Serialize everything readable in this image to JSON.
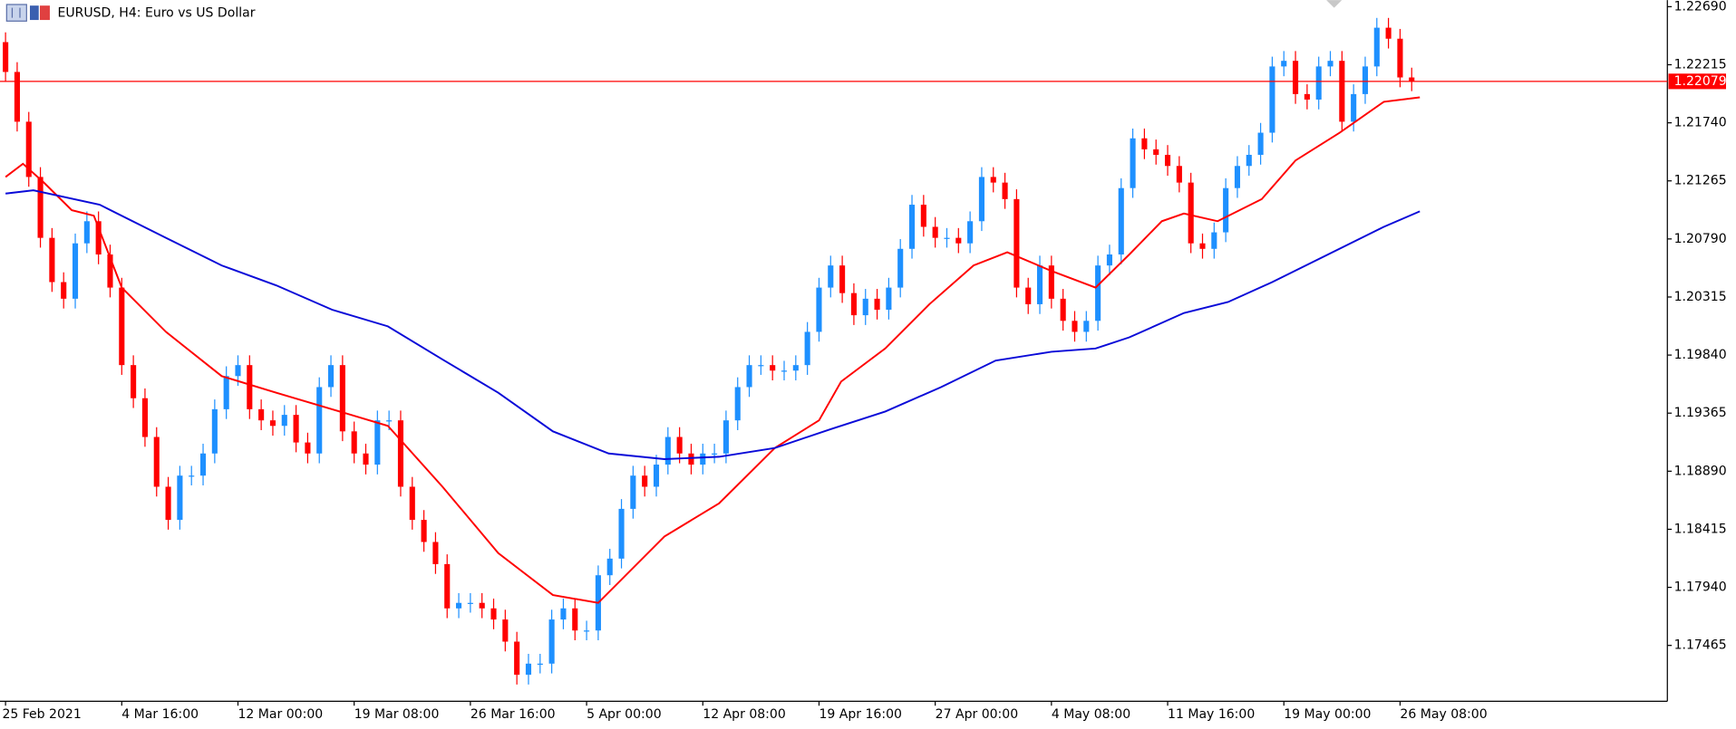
{
  "chart_data": {
    "type": "candlestick",
    "title": "EURUSD, H4:  Euro vs US Dollar",
    "xlim": [
      0,
      143
    ],
    "xticks": [
      {
        "value": 0,
        "label": "25 Feb 2021"
      },
      {
        "value": 10,
        "label": "4 Mar 16:00"
      },
      {
        "value": 20,
        "label": "12 Mar 00:00"
      },
      {
        "value": 30,
        "label": "19 Mar 08:00"
      },
      {
        "value": 40,
        "label": "26 Mar 16:00"
      },
      {
        "value": 50,
        "label": "5 Apr 00:00"
      },
      {
        "value": 60,
        "label": "12 Apr 08:00"
      },
      {
        "value": 70,
        "label": "19 Apr 16:00"
      },
      {
        "value": 80,
        "label": "27 Apr 00:00"
      },
      {
        "value": 90,
        "label": "4 May 08:00"
      },
      {
        "value": 100,
        "label": "11 May 16:00"
      },
      {
        "value": 110,
        "label": "19 May 00:00"
      },
      {
        "value": 120,
        "label": "26 May 08:00"
      }
    ],
    "ylim": [
      1.17008,
      1.22744
    ],
    "yticks": [
      {
        "value": 1.2269,
        "label": "1.22690"
      },
      1.22215,
      {
        "value": 1.2174,
        "label": "1.21740"
      },
      1.21265,
      {
        "value": 1.2079,
        "label": "1.20790"
      },
      1.20315,
      {
        "value": 1.1984,
        "label": "1.19840"
      },
      1.19365,
      {
        "value": 1.1889,
        "label": "1.18890"
      },
      1.18415,
      {
        "value": 1.1794,
        "label": "1.17940"
      },
      1.17465
    ],
    "up_color": "#1e90ff",
    "down_color": "#ff0000",
    "open": [
      1.224,
      1.22156,
      1.21749,
      1.21297,
      1.20799,
      1.20437,
      1.20301,
      1.20754,
      1.20935,
      1.20663,
      1.20392,
      1.19758,
      1.19487,
      1.1917,
      1.18763,
      1.18492,
      1.18854,
      1.18854,
      1.19035,
      1.19397,
      1.19668,
      1.19758,
      1.19397,
      1.19306,
      1.19261,
      1.19351,
      1.19125,
      1.19035,
      1.19578,
      1.19758,
      1.19216,
      1.19035,
      1.18944,
      1.19306,
      1.19306,
      1.18763,
      1.18492,
      1.18311,
      1.1813,
      1.17768,
      1.17813,
      1.17813,
      1.17768,
      1.17677,
      1.17496,
      1.17225,
      1.17316,
      1.17316,
      1.17677,
      1.17768,
      1.17587,
      1.17587,
      1.18039,
      1.18175,
      1.18582,
      1.18854,
      1.18763,
      1.18944,
      1.1917,
      1.19035,
      1.18944,
      1.19035,
      1.19035,
      1.19306,
      1.19578,
      1.19758,
      1.19758,
      1.19713,
      1.19713,
      1.19758,
      1.2003,
      1.20392,
      1.20573,
      1.20347,
      1.20166,
      1.20301,
      1.20211,
      1.20392,
      1.20709,
      1.2107,
      1.20889,
      1.20799,
      1.20799,
      1.20754,
      1.20935,
      1.21297,
      1.21251,
      1.21116,
      1.20392,
      1.20256,
      1.20573,
      1.20301,
      1.2012,
      1.2003,
      1.2012,
      1.20573,
      1.20663,
      1.21206,
      1.21613,
      1.21523,
      1.21478,
      1.21387,
      1.21251,
      1.20754,
      1.20709,
      1.20844,
      1.21206,
      1.21387,
      1.21478,
      1.21659,
      1.22201,
      1.22247,
      1.21975,
      1.2193,
      1.22201,
      1.22247,
      1.21749,
      1.21975,
      1.22201,
      1.22518,
      1.22428,
      1.22111
    ],
    "high": [
      1.2248,
      1.22236,
      1.21829,
      1.21377,
      1.20879,
      1.20517,
      1.20834,
      1.21015,
      1.21015,
      1.20743,
      1.20472,
      1.19838,
      1.19567,
      1.1925,
      1.18843,
      1.18934,
      1.18934,
      1.19115,
      1.19477,
      1.19748,
      1.19838,
      1.19838,
      1.19477,
      1.19386,
      1.19431,
      1.19431,
      1.19205,
      1.19658,
      1.19838,
      1.19838,
      1.19296,
      1.19115,
      1.19386,
      1.19386,
      1.19386,
      1.18843,
      1.18572,
      1.18391,
      1.1821,
      1.17893,
      1.17893,
      1.17893,
      1.17848,
      1.17757,
      1.17576,
      1.17396,
      1.17396,
      1.17757,
      1.17848,
      1.17848,
      1.17667,
      1.18119,
      1.18255,
      1.18662,
      1.18934,
      1.18934,
      1.19024,
      1.1925,
      1.1925,
      1.19115,
      1.19115,
      1.19115,
      1.19386,
      1.19658,
      1.19838,
      1.19838,
      1.19838,
      1.19793,
      1.19838,
      1.2011,
      1.20472,
      1.20653,
      1.20653,
      1.20427,
      1.20381,
      1.20381,
      1.20472,
      1.20789,
      1.2115,
      1.2115,
      1.20969,
      1.20879,
      1.20879,
      1.21015,
      1.21377,
      1.21377,
      1.21331,
      1.21196,
      1.20472,
      1.20653,
      1.20653,
      1.20381,
      1.202,
      1.202,
      1.20653,
      1.20743,
      1.21286,
      1.21693,
      1.21693,
      1.21603,
      1.21558,
      1.21467,
      1.21331,
      1.20834,
      1.20924,
      1.21286,
      1.21467,
      1.21558,
      1.21739,
      1.22281,
      1.22327,
      1.22327,
      1.22055,
      1.22281,
      1.22327,
      1.22327,
      1.22055,
      1.22281,
      1.22598,
      1.22598,
      1.22508,
      1.22191
    ],
    "low": [
      1.22076,
      1.21669,
      1.21217,
      1.20719,
      1.20357,
      1.20221,
      1.20221,
      1.20674,
      1.20583,
      1.20312,
      1.19678,
      1.19407,
      1.1909,
      1.18683,
      1.18412,
      1.18412,
      1.18774,
      1.18774,
      1.18955,
      1.19317,
      1.19588,
      1.19317,
      1.19226,
      1.19181,
      1.19181,
      1.19045,
      1.18955,
      1.18955,
      1.19498,
      1.19136,
      1.18955,
      1.18864,
      1.18864,
      1.19226,
      1.18683,
      1.18412,
      1.18231,
      1.1805,
      1.17688,
      1.17688,
      1.17733,
      1.17688,
      1.17597,
      1.17416,
      1.17145,
      1.17145,
      1.17236,
      1.17236,
      1.17597,
      1.17507,
      1.17507,
      1.17507,
      1.17959,
      1.18095,
      1.18502,
      1.18683,
      1.18683,
      1.18864,
      1.18955,
      1.18864,
      1.18864,
      1.18955,
      1.18955,
      1.19226,
      1.19498,
      1.19678,
      1.19633,
      1.19633,
      1.19633,
      1.19678,
      1.1995,
      1.20312,
      1.20267,
      1.20086,
      1.20086,
      1.20131,
      1.20131,
      1.20312,
      1.20629,
      1.20809,
      1.20719,
      1.20719,
      1.20674,
      1.20674,
      1.20855,
      1.21171,
      1.21036,
      1.20312,
      1.20176,
      1.20176,
      1.20221,
      1.2004,
      1.1995,
      1.1995,
      1.2004,
      1.20493,
      1.20583,
      1.21126,
      1.21443,
      1.21398,
      1.21307,
      1.21171,
      1.20674,
      1.20629,
      1.20629,
      1.20764,
      1.21126,
      1.21307,
      1.21398,
      1.21579,
      1.22121,
      1.21895,
      1.2185,
      1.2185,
      1.22121,
      1.21669,
      1.21669,
      1.21895,
      1.22121,
      1.22348,
      1.22031,
      1.21999
    ],
    "close": [
      1.22156,
      1.21749,
      1.21297,
      1.20799,
      1.20437,
      1.20301,
      1.20754,
      1.20935,
      1.20663,
      1.20392,
      1.19758,
      1.19487,
      1.1917,
      1.18763,
      1.18492,
      1.18854,
      1.18854,
      1.19035,
      1.19397,
      1.19668,
      1.19758,
      1.19397,
      1.19306,
      1.19261,
      1.19351,
      1.19125,
      1.19035,
      1.19578,
      1.19758,
      1.19216,
      1.19035,
      1.18944,
      1.19306,
      1.19306,
      1.18763,
      1.18492,
      1.18311,
      1.1813,
      1.17768,
      1.17813,
      1.17813,
      1.17768,
      1.17677,
      1.17496,
      1.17225,
      1.17316,
      1.17316,
      1.17677,
      1.17768,
      1.17587,
      1.17587,
      1.18039,
      1.18175,
      1.18582,
      1.18854,
      1.18763,
      1.18944,
      1.1917,
      1.19035,
      1.18944,
      1.19035,
      1.19035,
      1.19306,
      1.19578,
      1.19758,
      1.19758,
      1.19713,
      1.19713,
      1.19758,
      1.2003,
      1.20392,
      1.20573,
      1.20347,
      1.20166,
      1.20301,
      1.20211,
      1.20392,
      1.20709,
      1.2107,
      1.20889,
      1.20799,
      1.20799,
      1.20754,
      1.20935,
      1.21297,
      1.21251,
      1.21116,
      1.20392,
      1.20256,
      1.20573,
      1.20301,
      1.2012,
      1.2003,
      1.2012,
      1.20573,
      1.20663,
      1.21206,
      1.21613,
      1.21523,
      1.21478,
      1.21387,
      1.21251,
      1.20754,
      1.20709,
      1.20844,
      1.21206,
      1.21387,
      1.21478,
      1.21659,
      1.22201,
      1.22247,
      1.21975,
      1.2193,
      1.22201,
      1.22247,
      1.21749,
      1.21975,
      1.22201,
      1.22518,
      1.22428,
      1.22111,
      1.22079
    ],
    "lines": [
      {
        "color": "#ff0000",
        "x": [
          0,
          1.5,
          3.3,
          5.7,
          7.6,
          10,
          13.8,
          18.6,
          23.3,
          28.1,
          32.9,
          37.6,
          42.4,
          47.1,
          51,
          52.9,
          56.7,
          61.4,
          66.2,
          70,
          71.9,
          75.7,
          79.5,
          83.3,
          86.2,
          90,
          93.8,
          96.7,
          99.5,
          101.4,
          104.3,
          108.1,
          111,
          114.8,
          118.6,
          121.7
        ],
        "values": [
          1.21297,
          1.21405,
          1.21251,
          1.21025,
          1.2098,
          1.20392,
          1.2003,
          1.19668,
          1.19532,
          1.19397,
          1.19261,
          1.18763,
          1.1822,
          1.17877,
          1.17813,
          1.17994,
          1.18356,
          1.18627,
          1.1908,
          1.19306,
          1.19623,
          1.19894,
          1.20256,
          1.20573,
          1.20681,
          1.20528,
          1.20392,
          1.20663,
          1.20935,
          1.20998,
          1.20935,
          1.21116,
          1.21432,
          1.21659,
          1.21912,
          1.21948
        ]
      },
      {
        "color": "#0a0ad8",
        "x": [
          0,
          2.4,
          8.1,
          13.8,
          18.6,
          23.3,
          28.1,
          32.9,
          37.6,
          42.4,
          47.1,
          51.9,
          56.7,
          61.4,
          66.2,
          71,
          75.7,
          80.5,
          85.2,
          90,
          93.8,
          96.7,
          101.4,
          105.2,
          109,
          113.8,
          118.6,
          121.7
        ],
        "values": [
          1.21161,
          1.21188,
          1.2107,
          1.20799,
          1.20573,
          1.2041,
          1.20211,
          1.20075,
          1.19804,
          1.19532,
          1.19216,
          1.19035,
          1.18989,
          1.19008,
          1.1908,
          1.19234,
          1.19378,
          1.19578,
          1.19795,
          1.19867,
          1.19894,
          1.19985,
          1.20184,
          1.20274,
          1.20437,
          1.20663,
          1.20889,
          1.21016
        ]
      }
    ],
    "bid": 1.22079,
    "bid_color": "#ff0000"
  }
}
